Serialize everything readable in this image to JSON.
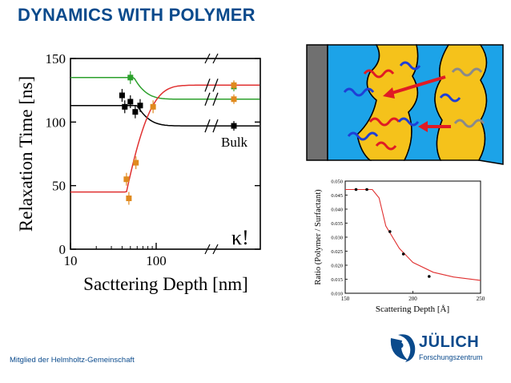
{
  "slide": {
    "title": "DYNAMICS WITH POLYMER",
    "footer": "Mitglied der Helmholtz-Gemeinschaft",
    "logo_name": "JÜLICH",
    "logo_sub": "Forschungszentrum",
    "kappa_label": "κ!"
  },
  "chart_data": [
    {
      "type": "scatter",
      "title": "",
      "xlabel": "Sacttering Depth [nm]",
      "ylabel": "Relaxation Time [ns]",
      "xscale": "log",
      "ylim": [
        0,
        150
      ],
      "xticks": [
        "10",
        "100"
      ],
      "yticks": [
        "0",
        "50",
        "100",
        "150"
      ],
      "annotation": "Bulk",
      "series": [
        {
          "color": "#2ca02c",
          "points": [
            [
              50,
              135
            ]
          ],
          "bulk_points": [
            [
              128
            ]
          ],
          "fit_plateau_low_depth": 135,
          "fit_plateau_high_depth": 118
        },
        {
          "color": "#000000",
          "points": [
            [
              40,
              121
            ],
            [
              43,
              112
            ],
            [
              50,
              116
            ],
            [
              57,
              108
            ],
            [
              65,
              113
            ]
          ],
          "bulk_points": [
            [
              97
            ]
          ],
          "fit_plateau_low_depth": 113,
          "fit_plateau_high_depth": 97
        },
        {
          "color": "#e08a1e",
          "points": [
            [
              45,
              55
            ],
            [
              48,
              40
            ],
            [
              58,
              68
            ],
            [
              92,
              112
            ]
          ],
          "bulk_points": [
            [
              118
            ],
            [
              129
            ]
          ],
          "fit_plateau_low_depth": 45,
          "fit_plateau_high_depth": 129
        }
      ]
    },
    {
      "type": "scatter",
      "title": "",
      "xlabel": "Scattering Depth [Å]",
      "ylabel": "Ratio (Polymer / Surfactant)",
      "xlim": [
        150,
        250
      ],
      "ylim": [
        0.01,
        0.05
      ],
      "xticks": [
        150,
        200,
        250
      ],
      "yticks": [
        "0.010",
        "0.015",
        "0.020",
        "0.025",
        "0.030",
        "0.035",
        "0.040",
        "0.045",
        "0.050"
      ],
      "points": [
        [
          158,
          0.047
        ],
        [
          166,
          0.047
        ],
        [
          183,
          0.032
        ],
        [
          193,
          0.024
        ],
        [
          212,
          0.016
        ]
      ],
      "fit": [
        [
          150,
          0.047
        ],
        [
          170,
          0.047
        ],
        [
          175,
          0.044
        ],
        [
          180,
          0.034
        ],
        [
          190,
          0.026
        ],
        [
          200,
          0.021
        ],
        [
          215,
          0.0175
        ],
        [
          230,
          0.0158
        ],
        [
          250,
          0.0146
        ]
      ]
    }
  ]
}
